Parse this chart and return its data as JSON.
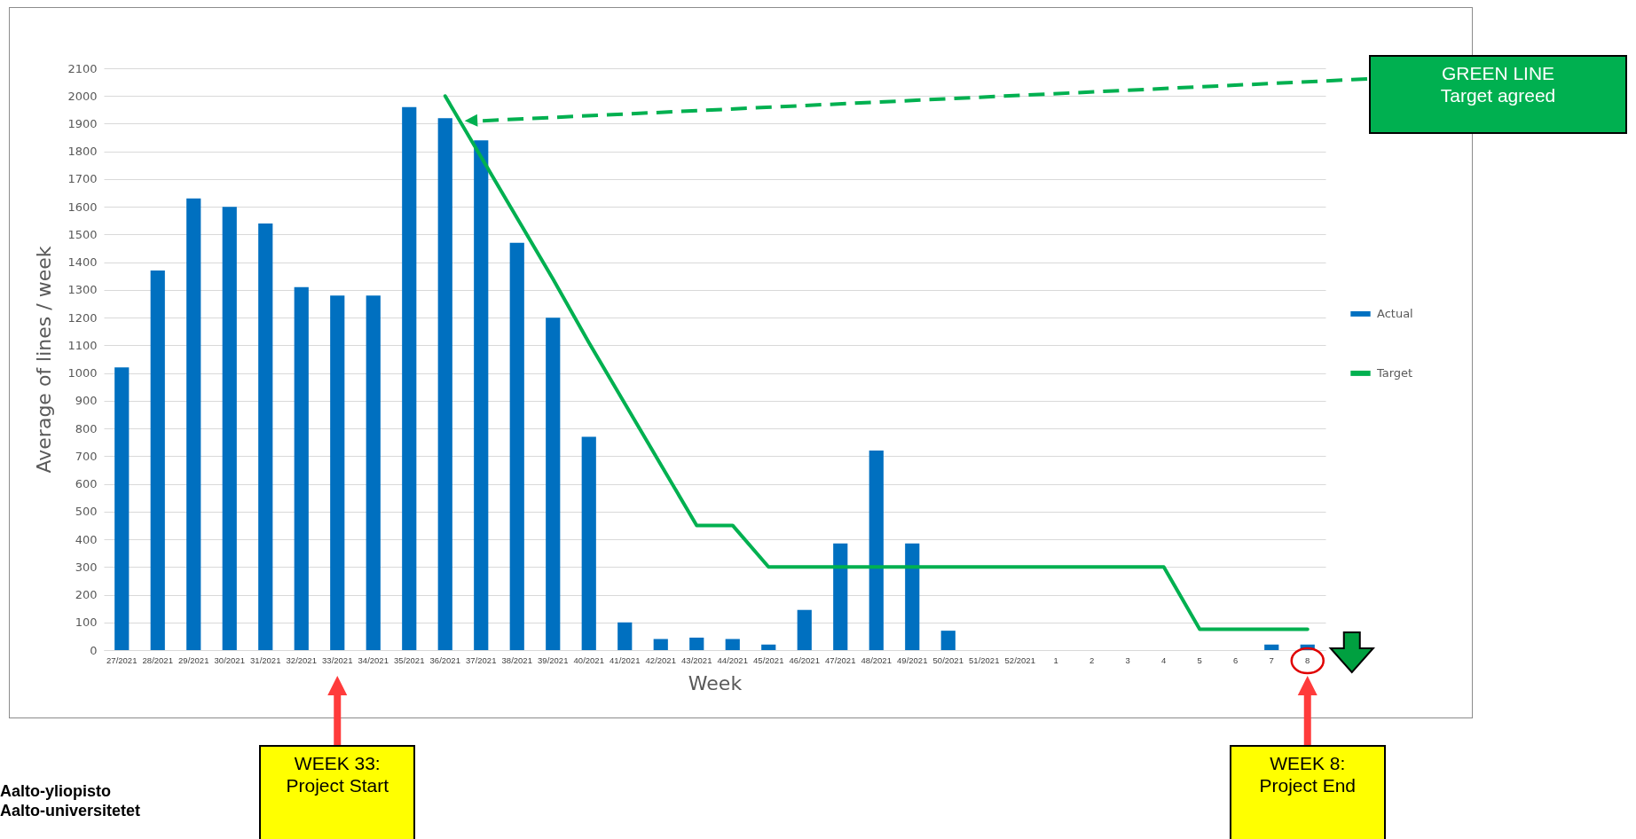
{
  "chart_data": {
    "type": "bar",
    "xlabel": "Week",
    "ylabel": "Average of lines / week",
    "categories": [
      "27/2021",
      "28/2021",
      "29/2021",
      "30/2021",
      "31/2021",
      "32/2021",
      "33/2021",
      "34/2021",
      "35/2021",
      "36/2021",
      "37/2021",
      "38/2021",
      "39/2021",
      "40/2021",
      "41/2021",
      "42/2021",
      "43/2021",
      "44/2021",
      "45/2021",
      "46/2021",
      "47/2021",
      "48/2021",
      "49/2021",
      "50/2021",
      "51/2021",
      "52/2021",
      "1",
      "2",
      "3",
      "4",
      "5",
      "6",
      "7",
      "8"
    ],
    "series": [
      {
        "name": "Actual",
        "color": "#0070c0",
        "values": [
          1020,
          1370,
          1630,
          1600,
          1540,
          1310,
          1280,
          1280,
          1960,
          1920,
          1840,
          1470,
          1200,
          770,
          100,
          40,
          45,
          40,
          20,
          145,
          385,
          720,
          385,
          70,
          null,
          null,
          null,
          null,
          null,
          null,
          null,
          null,
          20,
          20
        ]
      },
      {
        "name": "Target",
        "type": "line",
        "color": "#00b050",
        "values": [
          null,
          null,
          null,
          null,
          null,
          null,
          null,
          null,
          null,
          2000,
          1780,
          1560,
          1340,
          1110,
          890,
          670,
          450,
          450,
          300,
          300,
          300,
          300,
          300,
          300,
          300,
          300,
          300,
          300,
          300,
          300,
          75,
          75,
          75,
          75
        ]
      }
    ],
    "ylim": [
      0,
      2100
    ],
    "yticks": [
      0,
      100,
      200,
      300,
      400,
      500,
      600,
      700,
      800,
      900,
      1000,
      1100,
      1200,
      1300,
      1400,
      1500,
      1600,
      1700,
      1800,
      1900,
      2000,
      2100
    ],
    "grid": "y",
    "legend": "right",
    "line_style": "solid",
    "marker": "none",
    "annotations": [
      "GREEN LINE\nTarget agreed",
      "WEEK 33:\nProject Start",
      "WEEK 8:\nProject End",
      "Aalto-yliopisto\nAalto-universitetet"
    ]
  }
}
